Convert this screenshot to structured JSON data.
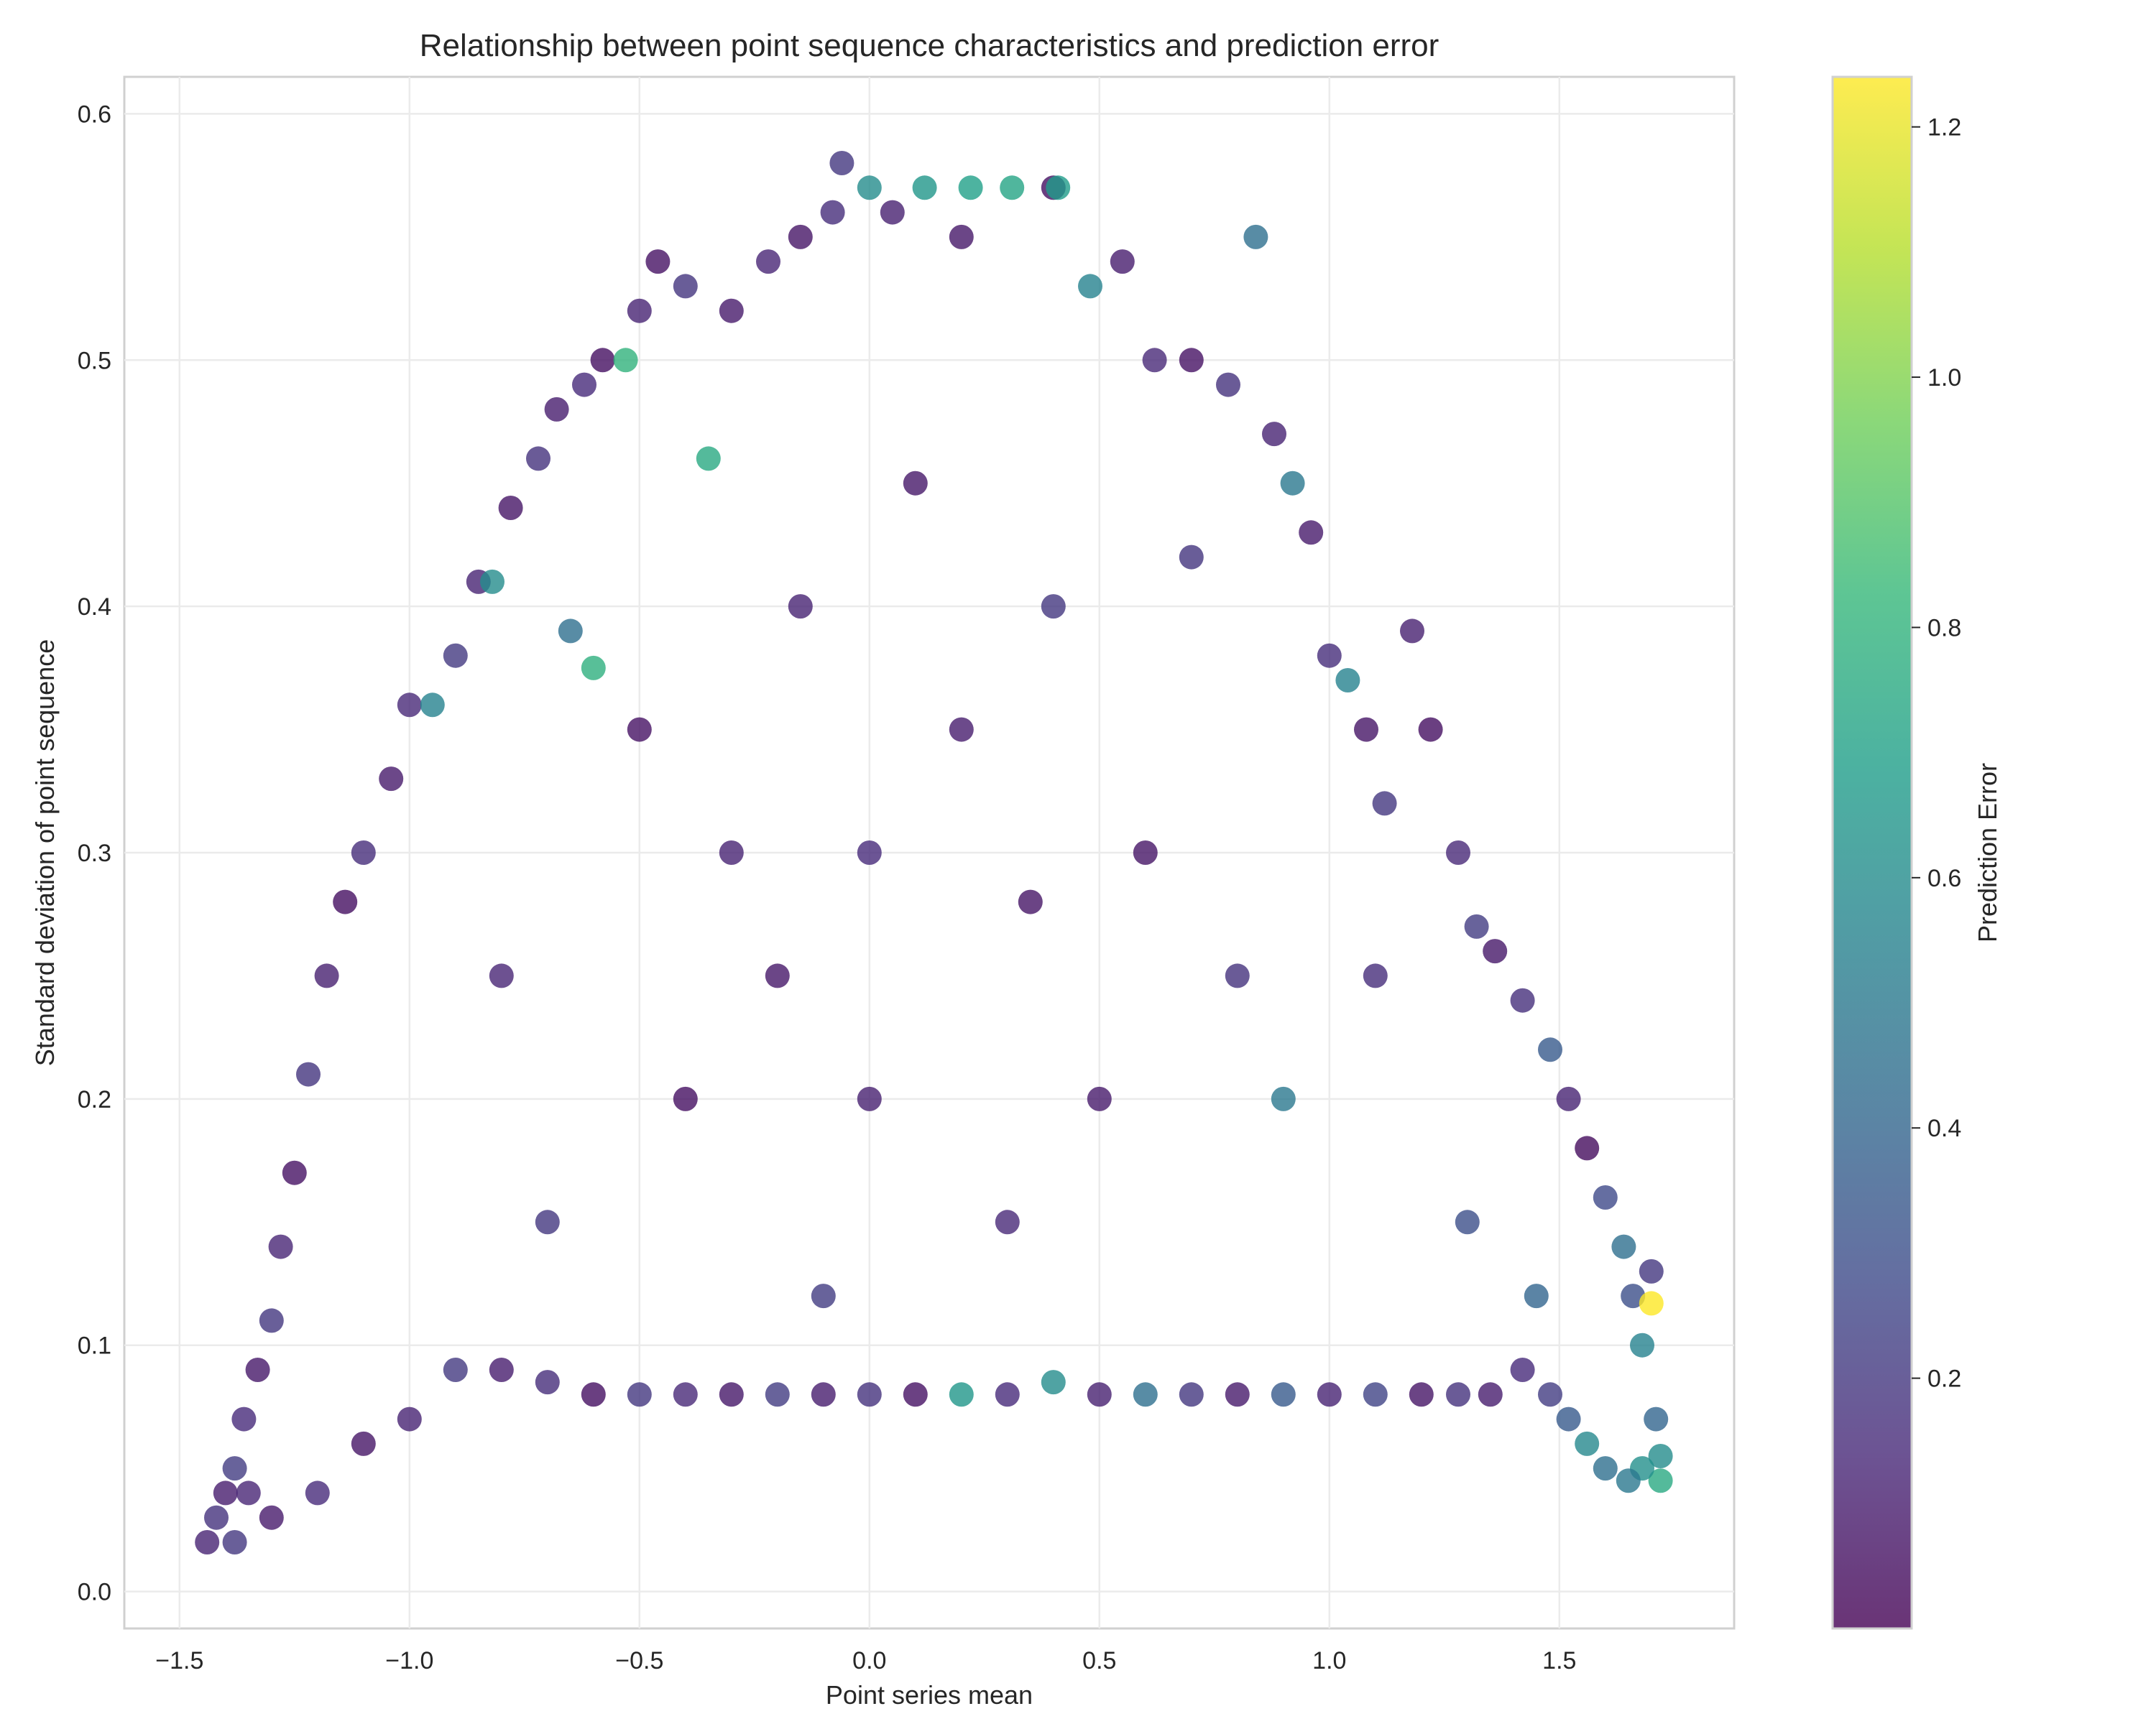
{
  "chart_data": {
    "type": "scatter",
    "title": "Relationship between point sequence characteristics and prediction error",
    "xlabel": "Point series mean",
    "ylabel": "Standard deviation of point sequence",
    "xlim": [
      -1.62,
      1.88
    ],
    "ylim": [
      -0.015,
      0.615
    ],
    "xticks": [
      -1.5,
      -1.0,
      -0.5,
      0.0,
      0.5,
      1.0,
      1.5
    ],
    "xtick_labels": [
      "−1.5",
      "−1.0",
      "−0.5",
      "0.0",
      "0.5",
      "1.0",
      "1.5"
    ],
    "yticks": [
      0.0,
      0.1,
      0.2,
      0.3,
      0.4,
      0.5,
      0.6
    ],
    "ytick_labels": [
      "0.0",
      "0.1",
      "0.2",
      "0.3",
      "0.4",
      "0.5",
      "0.6"
    ],
    "grid": true,
    "colorbar": {
      "label": "Prediction Error",
      "range": [
        0.0,
        1.24
      ],
      "ticks": [
        0.2,
        0.4,
        0.6,
        0.8,
        1.0,
        1.2
      ],
      "tick_labels": [
        "0.2",
        "0.4",
        "0.6",
        "0.8",
        "1.0",
        "1.2"
      ],
      "colormap": "viridis"
    },
    "colormap_stops": [
      "#440154",
      "#482878",
      "#3e4989",
      "#31688e",
      "#26828e",
      "#1f9e89",
      "#35b779",
      "#6ece58",
      "#b5de2b",
      "#fde725"
    ],
    "marker_alpha": 0.8,
    "series": [
      {
        "points": [
          [
            -1.44,
            0.02,
            0.12
          ],
          [
            -1.42,
            0.03,
            0.18
          ],
          [
            -1.4,
            0.04,
            0.1
          ],
          [
            -1.38,
            0.05,
            0.22
          ],
          [
            -1.36,
            0.07,
            0.15
          ],
          [
            -1.33,
            0.09,
            0.08
          ],
          [
            -1.3,
            0.11,
            0.2
          ],
          [
            -1.28,
            0.14,
            0.13
          ],
          [
            -1.25,
            0.17,
            0.06
          ],
          [
            -1.22,
            0.21,
            0.19
          ],
          [
            -1.18,
            0.25,
            0.11
          ],
          [
            -1.14,
            0.28,
            0.05
          ],
          [
            -1.1,
            0.3,
            0.16
          ],
          [
            -1.04,
            0.33,
            0.09
          ],
          [
            -1.0,
            0.36,
            0.14
          ],
          [
            -0.95,
            0.36,
            0.55
          ],
          [
            -0.9,
            0.38,
            0.21
          ],
          [
            -0.85,
            0.41,
            0.12
          ],
          [
            -0.82,
            0.41,
            0.6
          ],
          [
            -0.78,
            0.44,
            0.07
          ],
          [
            -0.72,
            0.46,
            0.18
          ],
          [
            -0.68,
            0.48,
            0.1
          ],
          [
            -0.62,
            0.49,
            0.15
          ],
          [
            -0.58,
            0.5,
            0.05
          ],
          [
            -0.53,
            0.5,
            0.8
          ],
          [
            -0.5,
            0.52,
            0.12
          ],
          [
            -0.46,
            0.54,
            0.06
          ],
          [
            -0.4,
            0.53,
            0.19
          ],
          [
            -0.35,
            0.46,
            0.75
          ],
          [
            -0.3,
            0.52,
            0.09
          ],
          [
            -0.22,
            0.54,
            0.13
          ],
          [
            -0.15,
            0.55,
            0.07
          ],
          [
            -0.08,
            0.56,
            0.16
          ],
          [
            -0.06,
            0.58,
            0.2
          ],
          [
            0.0,
            0.57,
            0.6
          ],
          [
            0.05,
            0.56,
            0.11
          ],
          [
            0.12,
            0.57,
            0.65
          ],
          [
            0.2,
            0.55,
            0.08
          ],
          [
            0.22,
            0.57,
            0.7
          ],
          [
            0.31,
            0.57,
            0.72
          ],
          [
            0.4,
            0.57,
            0.05
          ],
          [
            0.41,
            0.57,
            0.68
          ],
          [
            0.48,
            0.53,
            0.55
          ],
          [
            0.55,
            0.54,
            0.1
          ],
          [
            0.62,
            0.5,
            0.14
          ],
          [
            0.7,
            0.5,
            0.06
          ],
          [
            0.78,
            0.49,
            0.18
          ],
          [
            0.84,
            0.55,
            0.45
          ],
          [
            0.88,
            0.47,
            0.12
          ],
          [
            0.92,
            0.45,
            0.5
          ],
          [
            0.96,
            0.43,
            0.09
          ],
          [
            1.0,
            0.38,
            0.16
          ],
          [
            1.04,
            0.37,
            0.55
          ],
          [
            1.08,
            0.35,
            0.07
          ],
          [
            1.12,
            0.32,
            0.2
          ],
          [
            1.18,
            0.39,
            0.11
          ],
          [
            1.22,
            0.35,
            0.05
          ],
          [
            1.28,
            0.3,
            0.14
          ],
          [
            1.32,
            0.27,
            0.22
          ],
          [
            1.36,
            0.26,
            0.08
          ],
          [
            1.42,
            0.24,
            0.17
          ],
          [
            1.48,
            0.22,
            0.35
          ],
          [
            1.52,
            0.2,
            0.12
          ],
          [
            1.56,
            0.18,
            0.04
          ],
          [
            1.6,
            0.16,
            0.28
          ],
          [
            1.64,
            0.14,
            0.45
          ],
          [
            1.66,
            0.12,
            0.3
          ],
          [
            1.68,
            0.1,
            0.55
          ],
          [
            1.7,
            0.13,
            0.2
          ],
          [
            1.7,
            0.117,
            1.24
          ],
          [
            1.71,
            0.07,
            0.4
          ],
          [
            1.72,
            0.055,
            0.6
          ],
          [
            1.72,
            0.045,
            0.75
          ],
          [
            1.68,
            0.05,
            0.62
          ],
          [
            1.65,
            0.045,
            0.5
          ],
          [
            1.6,
            0.05,
            0.45
          ],
          [
            1.56,
            0.06,
            0.58
          ],
          [
            1.52,
            0.07,
            0.35
          ],
          [
            1.48,
            0.08,
            0.22
          ],
          [
            1.42,
            0.09,
            0.15
          ],
          [
            1.35,
            0.08,
            0.1
          ],
          [
            1.28,
            0.08,
            0.18
          ],
          [
            1.2,
            0.08,
            0.07
          ],
          [
            1.1,
            0.08,
            0.25
          ],
          [
            1.0,
            0.08,
            0.12
          ],
          [
            0.9,
            0.08,
            0.35
          ],
          [
            0.8,
            0.08,
            0.09
          ],
          [
            0.7,
            0.08,
            0.2
          ],
          [
            0.6,
            0.08,
            0.45
          ],
          [
            0.5,
            0.08,
            0.11
          ],
          [
            0.4,
            0.085,
            0.6
          ],
          [
            0.3,
            0.08,
            0.15
          ],
          [
            0.2,
            0.08,
            0.65
          ],
          [
            0.1,
            0.08,
            0.06
          ],
          [
            0.0,
            0.08,
            0.18
          ],
          [
            -0.1,
            0.08,
            0.1
          ],
          [
            -0.2,
            0.08,
            0.22
          ],
          [
            -0.3,
            0.08,
            0.08
          ],
          [
            -0.4,
            0.08,
            0.14
          ],
          [
            -0.5,
            0.08,
            0.2
          ],
          [
            -0.6,
            0.08,
            0.05
          ],
          [
            -0.7,
            0.085,
            0.16
          ],
          [
            -0.8,
            0.09,
            0.1
          ],
          [
            -0.9,
            0.09,
            0.21
          ],
          [
            -1.0,
            0.07,
            0.12
          ],
          [
            -1.1,
            0.06,
            0.07
          ],
          [
            -1.2,
            0.04,
            0.15
          ],
          [
            -1.3,
            0.03,
            0.09
          ],
          [
            -1.38,
            0.02,
            0.2
          ],
          [
            -1.35,
            0.04,
            0.13
          ],
          [
            -0.6,
            0.375,
            0.78
          ],
          [
            -0.65,
            0.39,
            0.45
          ],
          [
            -0.3,
            0.3,
            0.12
          ],
          [
            -0.2,
            0.25,
            0.08
          ],
          [
            0.0,
            0.3,
            0.15
          ],
          [
            0.2,
            0.35,
            0.1
          ],
          [
            0.4,
            0.4,
            0.2
          ],
          [
            0.6,
            0.3,
            0.07
          ],
          [
            0.8,
            0.25,
            0.18
          ],
          [
            0.0,
            0.2,
            0.11
          ],
          [
            -0.4,
            0.2,
            0.05
          ],
          [
            0.3,
            0.15,
            0.14
          ],
          [
            -0.1,
            0.12,
            0.22
          ],
          [
            0.5,
            0.2,
            0.09
          ],
          [
            0.9,
            0.2,
            0.5
          ],
          [
            1.1,
            0.25,
            0.16
          ],
          [
            -0.8,
            0.25,
            0.13
          ],
          [
            -0.5,
            0.35,
            0.06
          ],
          [
            0.7,
            0.42,
            0.19
          ],
          [
            0.1,
            0.45,
            0.08
          ],
          [
            -0.15,
            0.4,
            0.12
          ],
          [
            0.35,
            0.28,
            0.07
          ],
          [
            -0.7,
            0.15,
            0.2
          ],
          [
            1.3,
            0.15,
            0.3
          ],
          [
            1.45,
            0.12,
            0.4
          ]
        ]
      }
    ]
  }
}
